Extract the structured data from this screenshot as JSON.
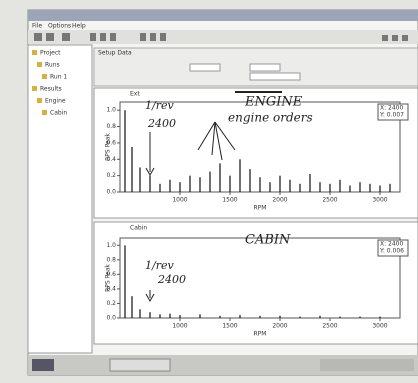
{
  "window": {
    "menu": [
      "File",
      "Options",
      "Help"
    ],
    "tab": "Setup Data"
  },
  "tree": [
    "Project",
    "Runs",
    "Run 1",
    "Results",
    "Engine",
    "Cabin"
  ],
  "charts": [
    {
      "title": "Ext",
      "note": "ENGINE",
      "x_label": "RPM",
      "y_label": "RPS Peak",
      "cursor": [
        "X: 2400",
        "Y: 0.007"
      ],
      "annotations": [
        "1/rev",
        "2400",
        "engine orders"
      ],
      "xlim": [
        400,
        3200
      ],
      "xticks": [
        1000,
        1500,
        2000,
        2500,
        3000
      ],
      "ylim": [
        0,
        1.1
      ],
      "yticks": [
        {
          "value": 0,
          "label": "0.0"
        },
        0.2,
        0.4,
        0.6,
        {
          "value": 0.8,
          "label": "0.8"
        },
        {
          "value": 1,
          "label": "1.0"
        }
      ],
      "x": [
        450,
        520,
        600,
        700,
        800,
        900,
        1000,
        1100,
        1200,
        1300,
        1400,
        1500,
        1600,
        1700,
        1800,
        1900,
        2000,
        2100,
        2200,
        2300,
        2400,
        2500,
        2600,
        2700,
        2800,
        2900,
        3000,
        3100
      ],
      "values": [
        1.0,
        0.55,
        0.3,
        0.2,
        0.1,
        0.15,
        0.12,
        0.2,
        0.18,
        0.25,
        0.35,
        0.2,
        0.4,
        0.28,
        0.18,
        0.12,
        0.2,
        0.15,
        0.1,
        0.22,
        0.12,
        0.1,
        0.15,
        0.08,
        0.12,
        0.1,
        0.08,
        0.1
      ]
    },
    {
      "title": "Cabin",
      "note": "CABIN",
      "x_label": "RPM",
      "y_label": "RPS Peak",
      "cursor": [
        "X: 2400",
        "Y: 0.006"
      ],
      "annotations": [
        "1/rev",
        "2400"
      ],
      "xlim": [
        400,
        3200
      ],
      "xticks": [
        1000,
        1500,
        2000,
        2500,
        3000
      ],
      "ylim": [
        0,
        1.1
      ],
      "yticks": [
        {
          "value": 0,
          "label": "0.0"
        },
        0.2,
        0.4,
        0.6,
        {
          "value": 0.8,
          "label": "0.8"
        },
        {
          "value": 1,
          "label": "1.0"
        }
      ],
      "x": [
        450,
        520,
        600,
        700,
        800,
        900,
        1000,
        1200,
        1400,
        1600,
        1800,
        2000,
        2200,
        2400,
        2600,
        2800,
        3000
      ],
      "values": [
        1.0,
        0.3,
        0.12,
        0.08,
        0.05,
        0.06,
        0.04,
        0.05,
        0.03,
        0.04,
        0.03,
        0.03,
        0.02,
        0.03,
        0.02,
        0.02,
        0.02
      ]
    }
  ]
}
